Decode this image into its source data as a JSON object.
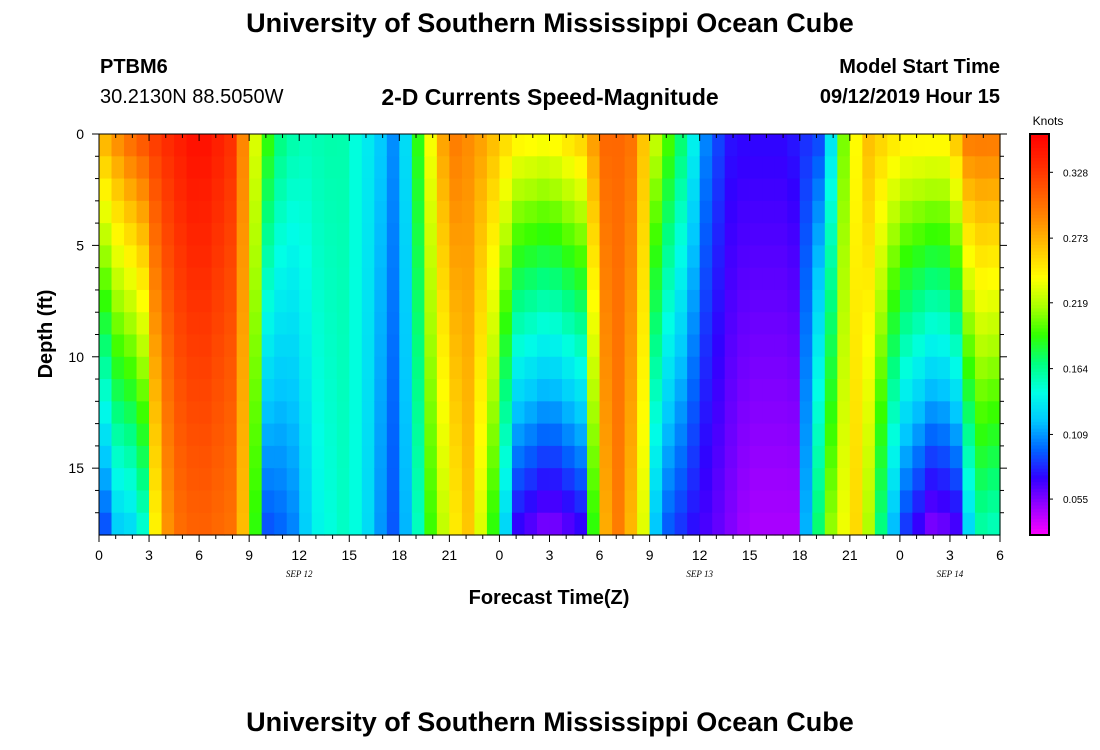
{
  "header": {
    "title": "University of Southern Mississippi Ocean Cube",
    "station_id": "PTBM6",
    "station_coords": "30.2130N 88.5050W",
    "plot_title": "2-D Currents Speed-Magnitude",
    "model_start_label": "Model Start Time",
    "model_start_value": "09/12/2019 Hour 15"
  },
  "footer": {
    "title": "University of Southern Mississippi Ocean Cube"
  },
  "chart_data": {
    "type": "heatmap",
    "title": "2-D Currents Speed-Magnitude",
    "xlabel": "Forecast Time(Z)",
    "ylabel": "Depth (ft)",
    "x_hours": [
      0,
      3,
      6,
      9,
      12,
      15,
      18,
      21,
      24,
      27,
      30,
      33,
      36,
      39,
      42,
      45,
      48,
      51,
      54
    ],
    "x_tick_labels": [
      "0",
      "3",
      "6",
      "9",
      "12",
      "15",
      "18",
      "21",
      "0",
      "3",
      "6",
      "9",
      "12",
      "15",
      "18",
      "21",
      "0",
      "3",
      "6"
    ],
    "date_labels": [
      {
        "hour": 12,
        "text": "SEP 12"
      },
      {
        "hour": 36,
        "text": "SEP 13"
      },
      {
        "hour": 51,
        "text": "SEP 14"
      }
    ],
    "xlim": [
      0,
      54
    ],
    "ylim": [
      0,
      18
    ],
    "y_ticks": [
      0,
      5,
      10,
      15
    ],
    "y_tick_labels": [
      "0",
      "5",
      "10",
      "15"
    ],
    "colorbar": {
      "units": "Knots",
      "vmin": 0.025,
      "vmax": 0.36,
      "ticks": [
        0.328,
        0.273,
        0.219,
        0.164,
        0.109,
        0.055
      ],
      "tick_labels": [
        "0.328",
        "0.273",
        "0.219",
        "0.164",
        "0.109",
        "0.055"
      ],
      "colors": [
        "#ff00ff",
        "#9b00ff",
        "#3200ff",
        "#0064ff",
        "#00c8ff",
        "#00ffe6",
        "#00ff80",
        "#32ff00",
        "#aaff00",
        "#ffff00",
        "#ffc800",
        "#ff8c00",
        "#ff5a00",
        "#ff2800",
        "#ff0000"
      ]
    },
    "depth_levels": [
      0,
      1,
      2,
      3,
      4,
      5,
      6,
      7,
      8,
      9,
      10,
      11,
      12,
      13,
      14,
      15,
      16,
      17,
      18
    ],
    "speed_surface_by_hour": [
      {
        "h": 0,
        "v": 0.27
      },
      {
        "h": 1,
        "v": 0.29
      },
      {
        "h": 2,
        "v": 0.31
      },
      {
        "h": 3.5,
        "v": 0.33
      },
      {
        "h": 6,
        "v": 0.355
      },
      {
        "h": 8.2,
        "v": 0.33
      },
      {
        "h": 9.2,
        "v": 0.24
      },
      {
        "h": 10.5,
        "v": 0.175
      },
      {
        "h": 12,
        "v": 0.155
      },
      {
        "h": 14.5,
        "v": 0.16
      },
      {
        "h": 16.5,
        "v": 0.13
      },
      {
        "h": 18,
        "v": 0.1
      },
      {
        "h": 19.5,
        "v": 0.22
      },
      {
        "h": 21,
        "v": 0.3
      },
      {
        "h": 23,
        "v": 0.28
      },
      {
        "h": 25,
        "v": 0.25
      },
      {
        "h": 27,
        "v": 0.245
      },
      {
        "h": 29,
        "v": 0.265
      },
      {
        "h": 30.5,
        "v": 0.31
      },
      {
        "h": 32,
        "v": 0.3
      },
      {
        "h": 33.5,
        "v": 0.22
      },
      {
        "h": 35,
        "v": 0.17
      },
      {
        "h": 36.5,
        "v": 0.1
      },
      {
        "h": 38,
        "v": 0.075
      },
      {
        "h": 41,
        "v": 0.075
      },
      {
        "h": 43.5,
        "v": 0.09
      },
      {
        "h": 44.5,
        "v": 0.2
      },
      {
        "h": 46,
        "v": 0.27
      },
      {
        "h": 48,
        "v": 0.25
      },
      {
        "h": 50,
        "v": 0.25
      },
      {
        "h": 51,
        "v": 0.25
      },
      {
        "h": 52,
        "v": 0.3
      },
      {
        "h": 54,
        "v": 0.3
      }
    ],
    "speed_bottom_by_hour": [
      {
        "h": 0,
        "v": 0.07
      },
      {
        "h": 1,
        "v": 0.12
      },
      {
        "h": 2.5,
        "v": 0.13
      },
      {
        "h": 3.5,
        "v": 0.26
      },
      {
        "h": 4.5,
        "v": 0.3
      },
      {
        "h": 6,
        "v": 0.31
      },
      {
        "h": 8,
        "v": 0.3
      },
      {
        "h": 9,
        "v": 0.25
      },
      {
        "h": 10,
        "v": 0.09
      },
      {
        "h": 11.5,
        "v": 0.1
      },
      {
        "h": 13,
        "v": 0.14
      },
      {
        "h": 15,
        "v": 0.155
      },
      {
        "h": 16.5,
        "v": 0.12
      },
      {
        "h": 17.5,
        "v": 0.09
      },
      {
        "h": 18.5,
        "v": 0.12
      },
      {
        "h": 20,
        "v": 0.2
      },
      {
        "h": 22,
        "v": 0.27
      },
      {
        "h": 23.5,
        "v": 0.2
      },
      {
        "h": 25,
        "v": 0.07
      },
      {
        "h": 27,
        "v": 0.05
      },
      {
        "h": 29,
        "v": 0.07
      },
      {
        "h": 30,
        "v": 0.26
      },
      {
        "h": 31,
        "v": 0.3
      },
      {
        "h": 32.5,
        "v": 0.25
      },
      {
        "h": 33.5,
        "v": 0.1
      },
      {
        "h": 36,
        "v": 0.07
      },
      {
        "h": 39,
        "v": 0.045
      },
      {
        "h": 42,
        "v": 0.045
      },
      {
        "h": 42.5,
        "v": 0.14
      },
      {
        "h": 44,
        "v": 0.22
      },
      {
        "h": 45.5,
        "v": 0.26
      },
      {
        "h": 48,
        "v": 0.09
      },
      {
        "h": 50,
        "v": 0.05
      },
      {
        "h": 51.5,
        "v": 0.065
      },
      {
        "h": 52.5,
        "v": 0.16
      },
      {
        "h": 54,
        "v": 0.15
      }
    ]
  }
}
